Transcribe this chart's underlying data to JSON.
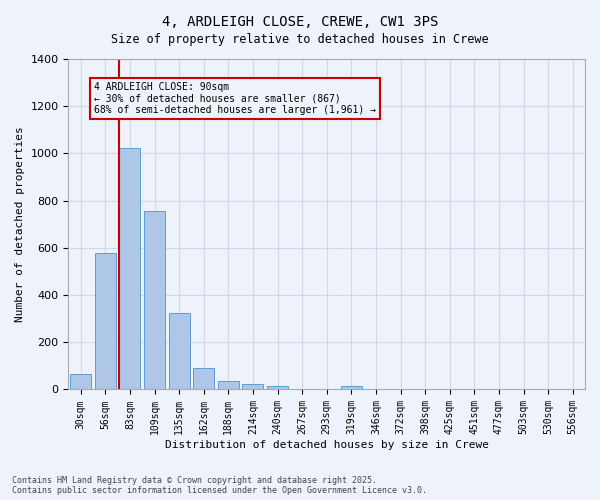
{
  "title1": "4, ARDLEIGH CLOSE, CREWE, CW1 3PS",
  "title2": "Size of property relative to detached houses in Crewe",
  "xlabel": "Distribution of detached houses by size in Crewe",
  "ylabel": "Number of detached properties",
  "categories": [
    "30sqm",
    "56sqm",
    "83sqm",
    "109sqm",
    "135sqm",
    "162sqm",
    "188sqm",
    "214sqm",
    "240sqm",
    "267sqm",
    "293sqm",
    "319sqm",
    "346sqm",
    "372sqm",
    "398sqm",
    "425sqm",
    "451sqm",
    "477sqm",
    "503sqm",
    "530sqm",
    "556sqm"
  ],
  "values": [
    65,
    578,
    1023,
    758,
    325,
    93,
    37,
    22,
    14,
    0,
    0,
    15,
    0,
    0,
    0,
    0,
    0,
    0,
    0,
    0,
    0
  ],
  "bar_color": "#aec6e8",
  "bar_edge_color": "#5a9fd4",
  "grid_color": "#d0d8e8",
  "bg_color": "#eef2fa",
  "annotation_box_text": "4 ARDLEIGH CLOSE: 90sqm\n← 30% of detached houses are smaller (867)\n68% of semi-detached houses are larger (1,961) →",
  "annotation_box_color": "#cc0000",
  "red_line_x": 2,
  "ylim": [
    0,
    1400
  ],
  "yticks": [
    0,
    200,
    400,
    600,
    800,
    1000,
    1200,
    1400
  ],
  "footer": "Contains HM Land Registry data © Crown copyright and database right 2025.\nContains public sector information licensed under the Open Government Licence v3.0."
}
